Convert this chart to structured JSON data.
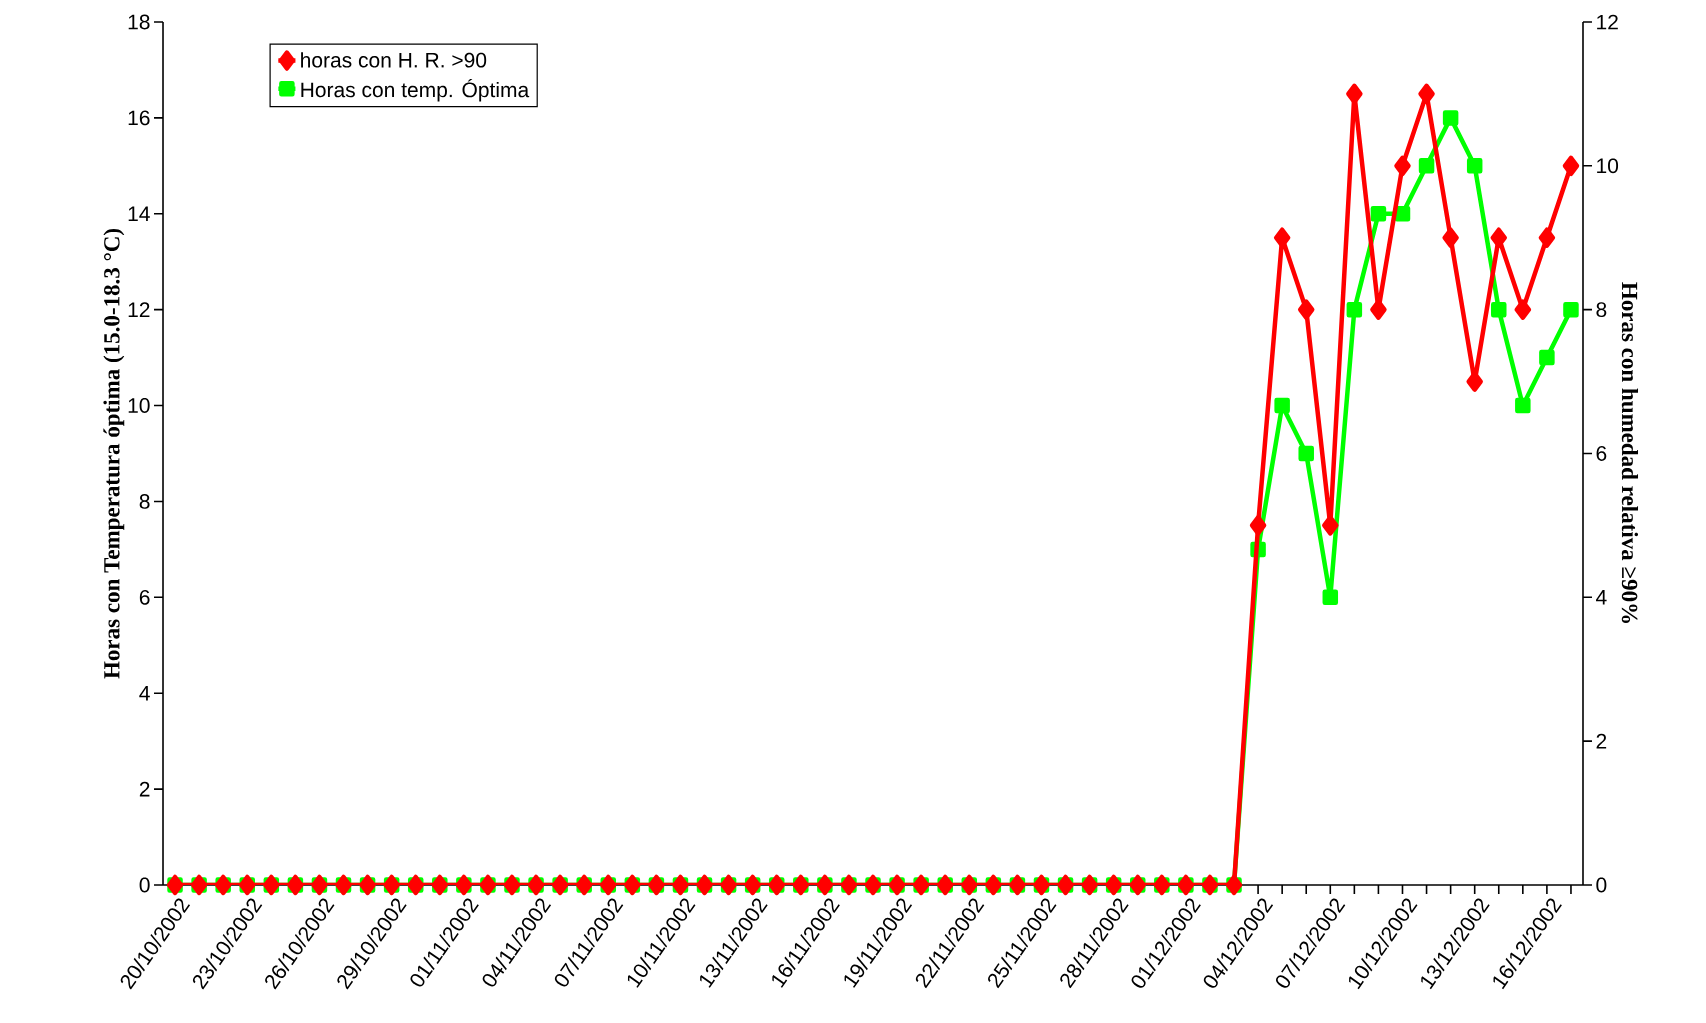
{
  "chart_data": {
    "type": "line",
    "ylabel": "Horas con Temperatura óptima (15.0-18.3 °C)",
    "y2label": "Horas con humedad relativa ≥90%",
    "categories": [
      "20/10/2002",
      null,
      null,
      "23/10/2002",
      null,
      null,
      "26/10/2002",
      null,
      null,
      "29/10/2002",
      null,
      null,
      "01/11/2002",
      null,
      null,
      "04/11/2002",
      null,
      null,
      "07/11/2002",
      null,
      null,
      "10/11/2002",
      null,
      null,
      "13/11/2002",
      null,
      null,
      "16/11/2002",
      null,
      null,
      "19/11/2002",
      null,
      null,
      "22/11/2002",
      null,
      null,
      "25/11/2002",
      null,
      null,
      "28/11/2002",
      null,
      null,
      "01/12/2002",
      null,
      null,
      "04/12/2002",
      null,
      null,
      "07/12/2002",
      null,
      null,
      "10/12/2002",
      null,
      null,
      "13/12/2002",
      null,
      null,
      "16/12/2002",
      null
    ],
    "series": [
      {
        "name": "horas con H. R. >90",
        "color": "#ff0000",
        "axis": "y2",
        "marker": "diamond",
        "values": [
          0,
          0,
          0,
          0,
          0,
          0,
          0,
          0,
          0,
          0,
          0,
          0,
          0,
          0,
          0,
          0,
          0,
          0,
          0,
          0,
          0,
          0,
          0,
          0,
          0,
          0,
          0,
          0,
          0,
          0,
          0,
          0,
          0,
          0,
          0,
          0,
          0,
          0,
          0,
          0,
          0,
          0,
          0,
          0,
          0,
          5,
          9,
          8,
          5,
          11,
          8,
          10,
          11,
          9,
          7,
          9,
          8,
          9,
          10
        ]
      },
      {
        "name": "Horas con temp. Óptima",
        "color": "#00ff00",
        "marker": "square",
        "values": [
          0,
          0,
          0,
          0,
          0,
          0,
          0,
          0,
          0,
          0,
          0,
          0,
          0,
          0,
          0,
          0,
          0,
          0,
          0,
          0,
          0,
          0,
          0,
          0,
          0,
          0,
          0,
          0,
          0,
          0,
          0,
          0,
          0,
          0,
          0,
          0,
          0,
          0,
          0,
          0,
          0,
          0,
          0,
          0,
          0,
          7,
          10,
          9,
          6,
          12,
          14,
          14,
          15,
          16,
          15,
          12,
          10,
          11,
          12
        ]
      }
    ],
    "ylim": [
      0,
      18
    ],
    "yticks": [
      0,
      2,
      4,
      6,
      8,
      10,
      12,
      14,
      16,
      18
    ],
    "y2lim": [
      0,
      12
    ],
    "y2ticks": [
      0,
      2,
      4,
      6,
      8,
      10,
      12
    ],
    "legend": "top left",
    "grid": false,
    "line_style": "solid"
  }
}
